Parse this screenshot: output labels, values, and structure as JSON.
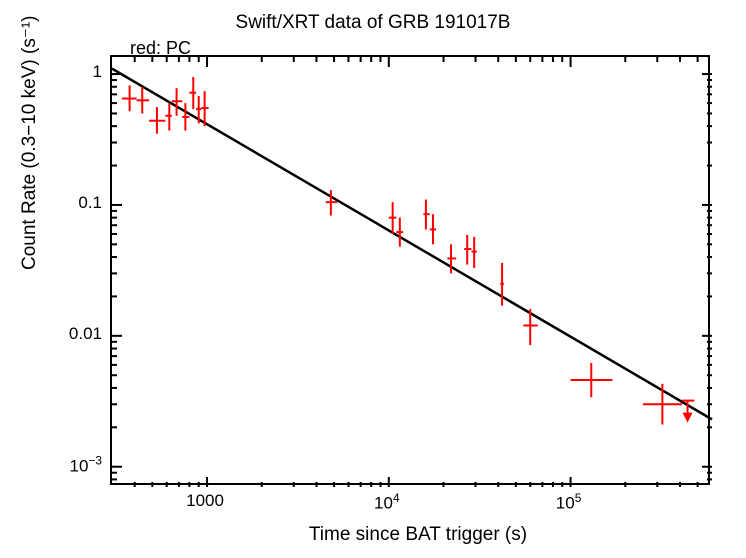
{
  "chart": {
    "type": "scatter",
    "title": "Swift/XRT data of GRB 191017B",
    "legend_note": "red: PC",
    "xlabel": "Time since BAT trigger (s)",
    "ylabel": "Count Rate (0.3−10 keV) (s⁻¹)",
    "xscale": "log",
    "yscale": "log",
    "xlim": [
      300,
      600000
    ],
    "ylim": [
      0.0007,
      1.35
    ],
    "xticks": [
      {
        "value": 1000,
        "label": "1000"
      },
      {
        "value": 10000,
        "label_html": "10<span class='sup'>4</span>"
      },
      {
        "value": 100000,
        "label_html": "10<span class='sup'>5</span>"
      }
    ],
    "yticks": [
      {
        "value": 0.001,
        "label_html": "10<span class='sup'>−3</span>"
      },
      {
        "value": 0.01,
        "label": "0.01"
      },
      {
        "value": 0.1,
        "label": "0.1"
      },
      {
        "value": 1,
        "label": "1"
      }
    ],
    "xminor": [
      400,
      500,
      600,
      700,
      800,
      900,
      2000,
      3000,
      4000,
      5000,
      6000,
      7000,
      8000,
      9000,
      20000,
      30000,
      40000,
      50000,
      60000,
      70000,
      80000,
      90000,
      200000,
      300000,
      400000,
      500000
    ],
    "yminor": [
      0.0008,
      0.0009,
      0.002,
      0.003,
      0.004,
      0.005,
      0.006,
      0.007,
      0.008,
      0.009,
      0.02,
      0.03,
      0.04,
      0.05,
      0.06,
      0.07,
      0.08,
      0.09,
      0.2,
      0.3,
      0.4,
      0.5,
      0.6,
      0.7,
      0.8,
      0.9
    ],
    "background_color": "#ffffff",
    "axis_color": "#000000",
    "data_color": "#ff0000",
    "fit_color": "#000000",
    "title_fontsize": 19,
    "label_fontsize": 19,
    "tick_fontsize": 17,
    "major_tick_len": 10,
    "minor_tick_len": 5,
    "tick_width": 2,
    "marker_linewidth": 2,
    "fit_linewidth": 2.5,
    "fit_line": {
      "x1": 300,
      "y1": 1.1,
      "x2": 600000,
      "y2": 0.0023
    },
    "points": [
      {
        "x": 375,
        "y": 0.65,
        "xerr_lo": 340,
        "xerr_hi": 410,
        "yerr_lo": 0.52,
        "yerr_hi": 0.82
      },
      {
        "x": 440,
        "y": 0.63,
        "xerr_lo": 410,
        "xerr_hi": 480,
        "yerr_lo": 0.5,
        "yerr_hi": 0.8
      },
      {
        "x": 530,
        "y": 0.44,
        "xerr_lo": 480,
        "xerr_hi": 590,
        "yerr_lo": 0.35,
        "yerr_hi": 0.56
      },
      {
        "x": 620,
        "y": 0.48,
        "xerr_lo": 590,
        "xerr_hi": 640,
        "yerr_lo": 0.37,
        "yerr_hi": 0.6
      },
      {
        "x": 680,
        "y": 0.62,
        "xerr_lo": 640,
        "xerr_hi": 730,
        "yerr_lo": 0.48,
        "yerr_hi": 0.78
      },
      {
        "x": 760,
        "y": 0.47,
        "xerr_lo": 730,
        "xerr_hi": 800,
        "yerr_lo": 0.37,
        "yerr_hi": 0.6
      },
      {
        "x": 840,
        "y": 0.72,
        "xerr_lo": 800,
        "xerr_hi": 870,
        "yerr_lo": 0.54,
        "yerr_hi": 0.95
      },
      {
        "x": 900,
        "y": 0.54,
        "xerr_lo": 870,
        "xerr_hi": 930,
        "yerr_lo": 0.42,
        "yerr_hi": 0.68
      },
      {
        "x": 970,
        "y": 0.55,
        "xerr_lo": 930,
        "xerr_hi": 1020,
        "yerr_lo": 0.4,
        "yerr_hi": 0.74
      },
      {
        "x": 4800,
        "y": 0.105,
        "xerr_lo": 4500,
        "xerr_hi": 5200,
        "yerr_lo": 0.083,
        "yerr_hi": 0.13
      },
      {
        "x": 10500,
        "y": 0.08,
        "xerr_lo": 10000,
        "xerr_hi": 11000,
        "yerr_lo": 0.06,
        "yerr_hi": 0.105
      },
      {
        "x": 11500,
        "y": 0.062,
        "xerr_lo": 11000,
        "xerr_hi": 12000,
        "yerr_lo": 0.048,
        "yerr_hi": 0.08
      },
      {
        "x": 16000,
        "y": 0.085,
        "xerr_lo": 15500,
        "xerr_hi": 16800,
        "yerr_lo": 0.065,
        "yerr_hi": 0.11
      },
      {
        "x": 17500,
        "y": 0.065,
        "xerr_lo": 16800,
        "xerr_hi": 18200,
        "yerr_lo": 0.05,
        "yerr_hi": 0.085
      },
      {
        "x": 22000,
        "y": 0.039,
        "xerr_lo": 21000,
        "xerr_hi": 23500,
        "yerr_lo": 0.03,
        "yerr_hi": 0.05
      },
      {
        "x": 27000,
        "y": 0.046,
        "xerr_lo": 26000,
        "xerr_hi": 28500,
        "yerr_lo": 0.035,
        "yerr_hi": 0.059
      },
      {
        "x": 29500,
        "y": 0.044,
        "xerr_lo": 28500,
        "xerr_hi": 30500,
        "yerr_lo": 0.033,
        "yerr_hi": 0.057
      },
      {
        "x": 42000,
        "y": 0.025,
        "xerr_lo": 41000,
        "xerr_hi": 43000,
        "yerr_lo": 0.017,
        "yerr_hi": 0.036
      },
      {
        "x": 60000,
        "y": 0.012,
        "xerr_lo": 55000,
        "xerr_hi": 66000,
        "yerr_lo": 0.0085,
        "yerr_hi": 0.016
      },
      {
        "x": 130000,
        "y": 0.0046,
        "xerr_lo": 100000,
        "xerr_hi": 170000,
        "yerr_lo": 0.0034,
        "yerr_hi": 0.0062
      },
      {
        "x": 320000,
        "y": 0.003,
        "xerr_lo": 250000,
        "xerr_hi": 410000,
        "yerr_lo": 0.0021,
        "yerr_hi": 0.0043
      }
    ],
    "upper_limits": [
      {
        "x": 440000,
        "y": 0.0032,
        "xerr_lo": 410000,
        "xerr_hi": 480000
      }
    ]
  }
}
